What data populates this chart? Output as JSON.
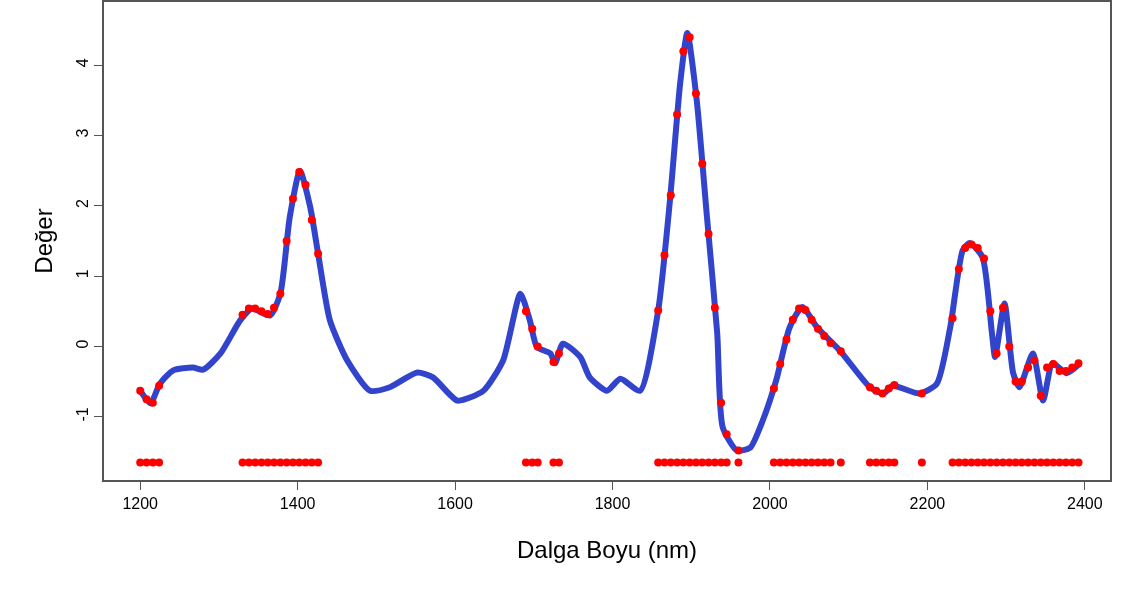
{
  "chart_data": {
    "type": "line",
    "xlabel": "Dalga Boyu (nm)",
    "ylabel": "Değer",
    "xlim": [
      1154,
      2432
    ],
    "ylim": [
      -1.9,
      4.9
    ],
    "xticks": [
      1200,
      1400,
      1600,
      1800,
      2000,
      2200,
      2400
    ],
    "yticks": [
      -1,
      0,
      1,
      2,
      3,
      4
    ],
    "grid": false,
    "legend": false,
    "series": [
      {
        "color": "#3344cc",
        "x": [
          1200,
          1213,
          1225,
          1242,
          1267,
          1280,
          1302,
          1327,
          1342,
          1365,
          1378,
          1390,
          1403,
          1416,
          1426,
          1441,
          1463,
          1492,
          1517,
          1552,
          1572,
          1603,
          1636,
          1661,
          1683,
          1695,
          1704,
          1721,
          1727,
          1737,
          1759,
          1771,
          1793,
          1810,
          1835,
          1858,
          1873,
          1886,
          1895,
          1907,
          1920,
          1933,
          1940,
          1958,
          1975,
          1991,
          2008,
          2025,
          2041,
          2060,
          2089,
          2127,
          2144,
          2156,
          2190,
          2212,
          2229,
          2245,
          2254,
          2270,
          2282,
          2286,
          2298,
          2309,
          2317,
          2334,
          2347,
          2359,
          2377,
          2394
        ],
        "values": [
          -0.63,
          -0.81,
          -0.53,
          -0.34,
          -0.3,
          -0.33,
          -0.1,
          0.37,
          0.54,
          0.44,
          0.75,
          1.84,
          2.5,
          1.98,
          1.32,
          0.37,
          -0.2,
          -0.63,
          -0.58,
          -0.37,
          -0.44,
          -0.77,
          -0.63,
          -0.2,
          0.75,
          0.37,
          -0.01,
          -0.1,
          -0.24,
          0.04,
          -0.15,
          -0.44,
          -0.63,
          -0.46,
          -0.63,
          0.51,
          2.08,
          3.75,
          4.46,
          3.5,
          1.84,
          0.19,
          -1.15,
          -1.48,
          -1.44,
          -1.05,
          -0.48,
          0.27,
          0.56,
          0.27,
          -0.06,
          -0.58,
          -0.67,
          -0.56,
          -0.67,
          -0.53,
          0.27,
          1.37,
          1.47,
          1.27,
          0.19,
          -0.15,
          0.61,
          -0.38,
          -0.58,
          -0.1,
          -0.77,
          -0.24,
          -0.38,
          -0.24
        ]
      },
      {
        "type": "scatter",
        "color": "#ff0000",
        "x": [
          1200,
          1208,
          1216,
          1224,
          1330,
          1338,
          1346,
          1354,
          1362,
          1370,
          1378,
          1386,
          1394,
          1402,
          1410,
          1418,
          1426,
          1690,
          1698,
          1705,
          1725,
          1732,
          1858,
          1866,
          1874,
          1882,
          1890,
          1898,
          1906,
          1914,
          1922,
          1930,
          1938,
          1945,
          1960,
          2005,
          2013,
          2021,
          2029,
          2037,
          2045,
          2053,
          2061,
          2069,
          2077,
          2090,
          2127,
          2135,
          2143,
          2151,
          2158,
          2193,
          2232,
          2240,
          2248,
          2256,
          2264,
          2272,
          2280,
          2288,
          2296,
          2304,
          2312,
          2320,
          2328,
          2336,
          2344,
          2352,
          2360,
          2368,
          2376,
          2384,
          2392
        ],
        "values": [
          -0.63,
          -0.75,
          -0.8,
          -0.56,
          0.45,
          0.54,
          0.54,
          0.5,
          0.46,
          0.55,
          0.75,
          1.5,
          2.1,
          2.48,
          2.3,
          1.8,
          1.32,
          0.5,
          0.25,
          0.0,
          -0.22,
          -0.1,
          0.51,
          1.3,
          2.15,
          3.3,
          4.2,
          4.4,
          3.6,
          2.6,
          1.6,
          0.55,
          -0.8,
          -1.25,
          -1.48,
          -0.6,
          -0.25,
          0.1,
          0.38,
          0.54,
          0.52,
          0.38,
          0.25,
          0.15,
          0.05,
          -0.07,
          -0.58,
          -0.63,
          -0.67,
          -0.6,
          -0.55,
          -0.67,
          0.4,
          1.1,
          1.4,
          1.45,
          1.4,
          1.25,
          0.5,
          -0.1,
          0.55,
          0.0,
          -0.5,
          -0.5,
          -0.3,
          -0.2,
          -0.7,
          -0.3,
          -0.25,
          -0.35,
          -0.35,
          -0.3,
          -0.24
        ]
      },
      {
        "type": "scatter",
        "color": "#ff0000",
        "x": [
          1200,
          1208,
          1216,
          1224,
          1330,
          1338,
          1346,
          1354,
          1362,
          1370,
          1378,
          1386,
          1394,
          1402,
          1410,
          1418,
          1426,
          1690,
          1698,
          1705,
          1725,
          1732,
          1858,
          1866,
          1874,
          1882,
          1890,
          1898,
          1906,
          1914,
          1922,
          1930,
          1938,
          1945,
          1960,
          2005,
          2013,
          2021,
          2029,
          2037,
          2045,
          2053,
          2061,
          2069,
          2077,
          2090,
          2127,
          2135,
          2143,
          2151,
          2158,
          2193,
          2232,
          2240,
          2248,
          2256,
          2264,
          2272,
          2280,
          2288,
          2296,
          2304,
          2312,
          2320,
          2328,
          2336,
          2344,
          2352,
          2360,
          2368,
          2376,
          2384,
          2392
        ],
        "values": [
          -1.65,
          -1.65,
          -1.65,
          -1.65,
          -1.65,
          -1.65,
          -1.65,
          -1.65,
          -1.65,
          -1.65,
          -1.65,
          -1.65,
          -1.65,
          -1.65,
          -1.65,
          -1.65,
          -1.65,
          -1.65,
          -1.65,
          -1.65,
          -1.65,
          -1.65,
          -1.65,
          -1.65,
          -1.65,
          -1.65,
          -1.65,
          -1.65,
          -1.65,
          -1.65,
          -1.65,
          -1.65,
          -1.65,
          -1.65,
          -1.65,
          -1.65,
          -1.65,
          -1.65,
          -1.65,
          -1.65,
          -1.65,
          -1.65,
          -1.65,
          -1.65,
          -1.65,
          -1.65,
          -1.65,
          -1.65,
          -1.65,
          -1.65,
          -1.65,
          -1.65,
          -1.65,
          -1.65,
          -1.65,
          -1.65,
          -1.65,
          -1.65,
          -1.65,
          -1.65,
          -1.65,
          -1.65,
          -1.65,
          -1.65,
          -1.65,
          -1.65,
          -1.65,
          -1.65,
          -1.65,
          -1.65,
          -1.65,
          -1.65,
          -1.65
        ]
      }
    ]
  }
}
